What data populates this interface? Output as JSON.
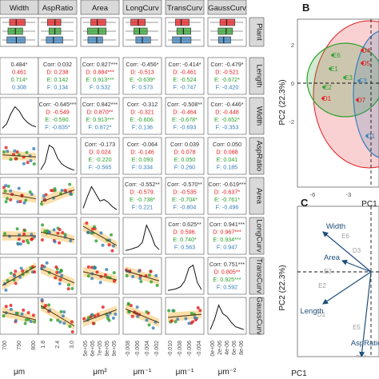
{
  "matrix": {
    "variables": [
      "Width",
      "AspRatio",
      "Area",
      "LongCurv",
      "TransCurv",
      "GaussCurv"
    ],
    "row_strips": [
      "Plant",
      "Length",
      "Width",
      "AspRatio",
      "Area",
      "LongCurv",
      "TransCurv",
      "GaussCurv"
    ],
    "top_strips": [
      "Width",
      "AspRatio",
      "Area",
      "LongCurv",
      "TransCurv",
      "GaussCurv"
    ],
    "group_colors": {
      "D": "#e41a1c",
      "E": "#2ca02c",
      "F": "#377eb8"
    },
    "correlations": [
      {
        "row": "Length",
        "col": "Width",
        "lines": [
          "0.484*",
          "0.461",
          "0.714*",
          "0.308"
        ]
      },
      {
        "row": "Length",
        "col": "AspRatio",
        "lines": [
          "Corr: 0.032",
          "D: 0.238",
          "E: 0.142",
          "F: 0.134"
        ]
      },
      {
        "row": "Length",
        "col": "Area",
        "lines": [
          "Corr: 0.827***",
          "D: 0.884***",
          "E: 0.913***",
          "F: 0.532"
        ]
      },
      {
        "row": "Length",
        "col": "LongCurv",
        "lines": [
          "Corr: -0.456*",
          "D: -0.513",
          "E: -0.639*",
          "F: 0.573"
        ]
      },
      {
        "row": "Length",
        "col": "TransCurv",
        "lines": [
          "Corr: -0.414*",
          "D: -0.461",
          "E: -0.524",
          "F: -0.747"
        ]
      },
      {
        "row": "Length",
        "col": "GaussCurv",
        "lines": [
          "Corr: -0.479*",
          "D: -0.521",
          "E: -0.672*",
          "F: -0.420"
        ]
      },
      {
        "row": "Width",
        "col": "AspRatio",
        "lines": [
          "Corr: -0.645***",
          "D: -0.549",
          "E: -0.590.",
          "F: -0.835*"
        ]
      },
      {
        "row": "Width",
        "col": "Area",
        "lines": [
          "Corr: 0.842***",
          "D: 0.870**",
          "E: 0.913***",
          "F: 0.872*"
        ]
      },
      {
        "row": "Width",
        "col": "LongCurv",
        "lines": [
          "Corr: -0.312",
          "D: -0.321",
          "E: -0.606.",
          "F: 0.136"
        ]
      },
      {
        "row": "Width",
        "col": "TransCurv",
        "lines": [
          "Corr: -0.508**",
          "D: -0.464",
          "E: -0.678*",
          "F: -0.693"
        ]
      },
      {
        "row": "Width",
        "col": "GaussCurv",
        "lines": [
          "Corr: -0.446*",
          "D: -0.448",
          "E: -0.652*",
          "F: -0.353"
        ]
      },
      {
        "row": "AspRatio",
        "col": "Area",
        "lines": [
          "Corr: -0.173",
          "D: 0.024",
          "E: -0.220",
          "F: -0.565"
        ]
      },
      {
        "row": "AspRatio",
        "col": "LongCurv",
        "lines": [
          "Corr: -0.064",
          "D: -0.146",
          "E: 0.093",
          "F: 0.334"
        ]
      },
      {
        "row": "AspRatio",
        "col": "TransCurv",
        "lines": [
          "Corr: 0.039",
          "D: 0.078",
          "E: 0.050",
          "F: 0.260"
        ]
      },
      {
        "row": "AspRatio",
        "col": "GaussCurv",
        "lines": [
          "Corr: 0.050",
          "D: 0.088",
          "E: 0.041",
          "F: 0.185"
        ]
      },
      {
        "row": "Area",
        "col": "LongCurv",
        "lines": [
          "Corr: -0.552**",
          "D: -0.579.",
          "E: -0.738*",
          "F: 0.221"
        ]
      },
      {
        "row": "Area",
        "col": "TransCurv",
        "lines": [
          "Corr: -0.570**",
          "D: -0.535",
          "E: -0.704*",
          "F: -0.804"
        ]
      },
      {
        "row": "Area",
        "col": "GaussCurv",
        "lines": [
          "Corr: -0.619***",
          "D: -0.637*",
          "E: -0.761*",
          "F: -0.496"
        ]
      },
      {
        "row": "LongCurv",
        "col": "TransCurv",
        "lines": [
          "Corr: 0.625**",
          "D: 0.596.",
          "E: 0.740*",
          "F: 0.563"
        ]
      },
      {
        "row": "LongCurv",
        "col": "GaussCurv",
        "lines": [
          "Corr: 0.941***",
          "D: 0.967***",
          "E: 0.934***",
          "F: 0.947"
        ]
      },
      {
        "row": "TransCurv",
        "col": "GaussCurv",
        "lines": [
          "Corr: 0.751***",
          "D: 0.805**",
          "E: 0.925***",
          "F: 0.592"
        ]
      }
    ],
    "bottom_ticks": [
      [
        "700",
        "750",
        "800"
      ],
      [
        "1.8",
        "2.4",
        "3.0"
      ],
      [
        "5e+05",
        "6e+05",
        "7e+05",
        "8e+05",
        "9e+05"
      ],
      [
        "-0.008",
        "-0.006",
        "-0.004",
        "-0.002"
      ],
      [
        "-0.010",
        "-0.008",
        "-0.006",
        "-0.004"
      ],
      [
        "0e+00",
        "2e-06",
        "4e-06",
        "6e-06",
        "8e-06"
      ]
    ],
    "bottom_units": [
      "μm",
      "",
      "μm²",
      "μm⁻¹",
      "μm⁻¹",
      "μm⁻²"
    ]
  },
  "panel_b": {
    "letter": "B",
    "ylabel": "PC2 (22.3%)",
    "xlabel": "PC1",
    "x_ticks": [
      "-6",
      "-3",
      "0"
    ],
    "y_ticks": [
      "2",
      "0",
      "-2"
    ],
    "points": [
      {
        "label": "E6",
        "group": "E"
      },
      {
        "label": "E1",
        "group": "E"
      },
      {
        "label": "E3",
        "group": "E"
      },
      {
        "label": "E2",
        "group": "E"
      },
      {
        "label": "D4",
        "group": "D"
      },
      {
        "label": "D5",
        "group": "D"
      },
      {
        "label": "D7",
        "group": "D"
      },
      {
        "label": "D1",
        "group": "D"
      },
      {
        "label": "F3",
        "group": "F"
      },
      {
        "label": "D1",
        "group": "F"
      }
    ]
  },
  "panel_c": {
    "letter": "C",
    "ylabel": "PC2 (22.3%)",
    "xlabel": "PC1",
    "loadings": [
      "Width",
      "Area",
      "Length",
      "AspRatio"
    ],
    "point_labels": [
      "E6",
      "D3",
      "E3",
      "E2",
      "D1",
      "E5",
      "D11"
    ]
  }
}
